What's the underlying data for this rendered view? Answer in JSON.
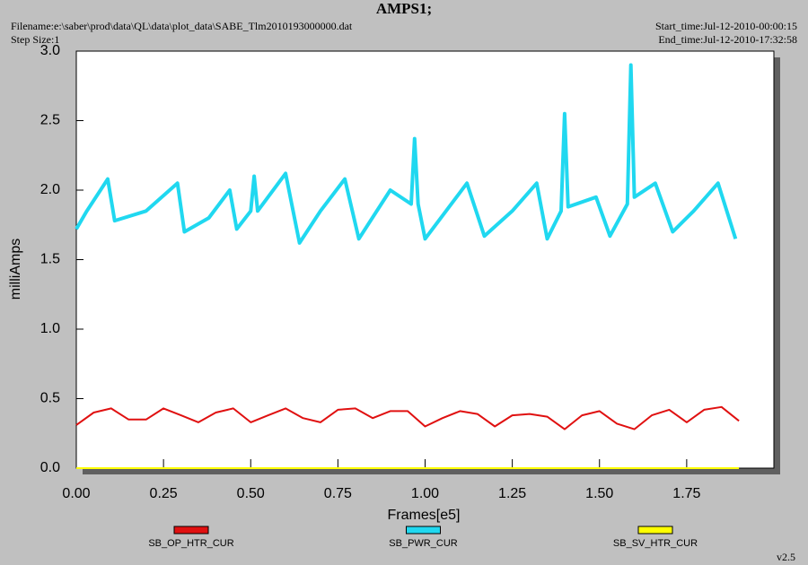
{
  "chart_data": {
    "type": "line",
    "title": "AMPS1;",
    "filename": "Filename:e:\\saber\\prod\\data\\QL\\data\\plot_data\\SABE_Tlm2010193000000.dat",
    "step_size": "Step Size:1",
    "start_time": "Start_time:Jul-12-2010-00:00:15",
    "end_time": "End_time:Jul-12-2010-17:32:58",
    "version": "v2.5",
    "x_label": "Frames[e5]",
    "y_label": "milliAmps",
    "xlim": [
      0,
      2.0
    ],
    "ylim": [
      0,
      3
    ],
    "xticks": [
      {
        "value": 0,
        "label": "0.00"
      },
      {
        "value": 0.25,
        "label": "0.25"
      },
      {
        "value": 0.5,
        "label": "0.50"
      },
      {
        "value": 0.75,
        "label": "0.75"
      },
      {
        "value": 1,
        "label": "1.00"
      },
      {
        "value": 1.25,
        "label": "1.25"
      },
      {
        "value": 1.5,
        "label": "1.50"
      },
      {
        "value": 1.75,
        "label": "1.75"
      }
    ],
    "yticks": [
      {
        "value": 0,
        "label": "0.0"
      },
      {
        "value": 0.5,
        "label": "0.5"
      },
      {
        "value": 1,
        "label": "1.0"
      },
      {
        "value": 1.5,
        "label": "1.5"
      },
      {
        "value": 2,
        "label": "2.0"
      },
      {
        "value": 2.5,
        "label": "2.5"
      },
      {
        "value": 3,
        "label": "3.0"
      }
    ],
    "series": [
      {
        "name": "SB_OP_HTR_CUR",
        "color": "#e01010",
        "x": [
          0,
          0.05,
          0.1,
          0.15,
          0.2,
          0.25,
          0.3,
          0.35,
          0.4,
          0.45,
          0.5,
          0.55,
          0.6,
          0.65,
          0.7,
          0.75,
          0.8,
          0.85,
          0.9,
          0.95,
          1.0,
          1.05,
          1.1,
          1.15,
          1.2,
          1.25,
          1.3,
          1.35,
          1.4,
          1.45,
          1.5,
          1.55,
          1.6,
          1.65,
          1.7,
          1.75,
          1.8,
          1.85,
          1.9
        ],
        "values": [
          0.31,
          0.4,
          0.43,
          0.35,
          0.35,
          0.43,
          0.38,
          0.33,
          0.4,
          0.43,
          0.33,
          0.38,
          0.43,
          0.36,
          0.33,
          0.42,
          0.43,
          0.36,
          0.41,
          0.41,
          0.3,
          0.36,
          0.41,
          0.39,
          0.3,
          0.38,
          0.39,
          0.37,
          0.28,
          0.38,
          0.41,
          0.32,
          0.28,
          0.38,
          0.42,
          0.33,
          0.42,
          0.44,
          0.34
        ]
      },
      {
        "name": "SB_PWR_CUR",
        "color": "#20d8f0",
        "x": [
          0,
          0.03,
          0.09,
          0.11,
          0.2,
          0.29,
          0.31,
          0.38,
          0.44,
          0.46,
          0.5,
          0.51,
          0.52,
          0.6,
          0.64,
          0.7,
          0.77,
          0.81,
          0.9,
          0.96,
          0.97,
          0.98,
          1.0,
          1.06,
          1.12,
          1.17,
          1.25,
          1.32,
          1.35,
          1.39,
          1.4,
          1.41,
          1.49,
          1.53,
          1.58,
          1.59,
          1.6,
          1.66,
          1.71,
          1.77,
          1.84,
          1.89
        ],
        "values": [
          1.72,
          1.85,
          2.08,
          1.78,
          1.85,
          2.05,
          1.7,
          1.8,
          2.0,
          1.72,
          1.85,
          2.1,
          1.85,
          2.12,
          1.62,
          1.85,
          2.08,
          1.65,
          2.0,
          1.9,
          2.37,
          1.9,
          1.65,
          1.85,
          2.05,
          1.67,
          1.85,
          2.05,
          1.65,
          1.85,
          2.55,
          1.88,
          1.95,
          1.67,
          1.9,
          2.9,
          1.95,
          2.05,
          1.7,
          1.85,
          2.05,
          1.65
        ]
      },
      {
        "name": "SB_SV_HTR_CUR",
        "color": "#ffff00",
        "x": [
          0,
          1.9
        ],
        "values": [
          0,
          0
        ]
      }
    ]
  }
}
